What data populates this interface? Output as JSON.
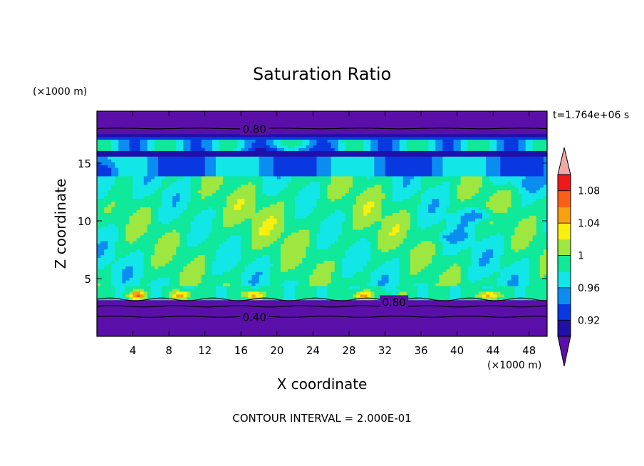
{
  "chart_data": {
    "type": "heatmap",
    "title": "Saturation Ratio",
    "xlabel": "X coordinate",
    "ylabel": "Z coordinate",
    "x_unit": "(×1000 m)",
    "y_unit": "(×1000 m)",
    "time_label": "t=1.764e+06 s",
    "footer": "CONTOUR INTERVAL = 2.000E-01",
    "xlim": [
      0,
      50
    ],
    "ylim": [
      0,
      19.5
    ],
    "x_ticks": [
      4,
      8,
      12,
      16,
      20,
      24,
      28,
      32,
      36,
      40,
      44,
      48
    ],
    "y_ticks": [
      5,
      10,
      15
    ],
    "contour_labels": [
      {
        "text": "0.80",
        "x": 17.5,
        "z": 18.0
      },
      {
        "text": "0.80",
        "x": 33.0,
        "z": 3.0
      },
      {
        "text": "0.40",
        "x": 17.5,
        "z": 1.7
      }
    ],
    "colorbar": {
      "levels": [
        0.9,
        0.92,
        0.94,
        0.96,
        0.98,
        1.0,
        1.02,
        1.04,
        1.06,
        1.08,
        1.1
      ],
      "colors": [
        "#5a10a8",
        "#1f10a8",
        "#0a38e0",
        "#0a8cf0",
        "#12e6e6",
        "#10e89a",
        "#9ee640",
        "#f8f010",
        "#f8a010",
        "#f86018",
        "#f01818",
        "#f0a8a8"
      ],
      "labels": [
        "0.92",
        "0.96",
        "1",
        "1.04",
        "1.08"
      ],
      "label_values": [
        0.92,
        0.96,
        1.0,
        1.04,
        1.08
      ]
    }
  }
}
